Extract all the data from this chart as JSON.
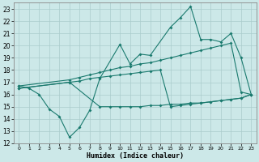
{
  "xlabel": "Humidex (Indice chaleur)",
  "xlim": [
    -0.5,
    23.5
  ],
  "ylim": [
    12,
    23.5
  ],
  "xticks": [
    0,
    1,
    2,
    3,
    4,
    5,
    6,
    7,
    8,
    9,
    10,
    11,
    12,
    13,
    14,
    15,
    16,
    17,
    18,
    19,
    20,
    21,
    22,
    23
  ],
  "yticks": [
    12,
    13,
    14,
    15,
    16,
    17,
    18,
    19,
    20,
    21,
    22,
    23
  ],
  "bg_color": "#cce8e8",
  "line_color": "#1a7a6e",
  "grid_color": "#aacccc",
  "series1_x": [
    0,
    1,
    2,
    3,
    4,
    5,
    6,
    7,
    8,
    10,
    11,
    12,
    13,
    15,
    16,
    17,
    18,
    19,
    20,
    21,
    22,
    23
  ],
  "series1_y": [
    16.7,
    16.5,
    16.0,
    14.8,
    14.2,
    12.5,
    13.3,
    14.7,
    17.3,
    20.1,
    18.5,
    19.3,
    19.2,
    21.5,
    22.3,
    23.2,
    20.5,
    20.5,
    20.3,
    21.0,
    19.0,
    16.0
  ],
  "series2_x": [
    0,
    5,
    6,
    7,
    8,
    9,
    10,
    11,
    12,
    13,
    14,
    15,
    16,
    17,
    18,
    19,
    20,
    21,
    22,
    23
  ],
  "series2_y": [
    16.7,
    17.2,
    17.4,
    17.6,
    17.8,
    18.0,
    18.2,
    18.3,
    18.5,
    18.6,
    18.8,
    19.0,
    19.2,
    19.4,
    19.6,
    19.8,
    20.0,
    20.2,
    16.2,
    16.0
  ],
  "series3_x": [
    0,
    5,
    6,
    7,
    8,
    9,
    10,
    11,
    12,
    13,
    14,
    15,
    16,
    17,
    18,
    19,
    20,
    21,
    22,
    23
  ],
  "series3_y": [
    16.5,
    17.0,
    17.1,
    17.3,
    17.4,
    17.5,
    17.6,
    17.7,
    17.8,
    17.9,
    18.0,
    15.0,
    15.1,
    15.2,
    15.3,
    15.4,
    15.5,
    15.6,
    15.7,
    16.0
  ],
  "series4_x": [
    0,
    5,
    8,
    9,
    10,
    11,
    12,
    13,
    14,
    15,
    16,
    17,
    18,
    19,
    20,
    21,
    22,
    23
  ],
  "series4_y": [
    16.5,
    17.0,
    15.0,
    15.0,
    15.0,
    15.0,
    15.0,
    15.1,
    15.1,
    15.2,
    15.2,
    15.3,
    15.3,
    15.4,
    15.5,
    15.6,
    15.7,
    16.0
  ]
}
